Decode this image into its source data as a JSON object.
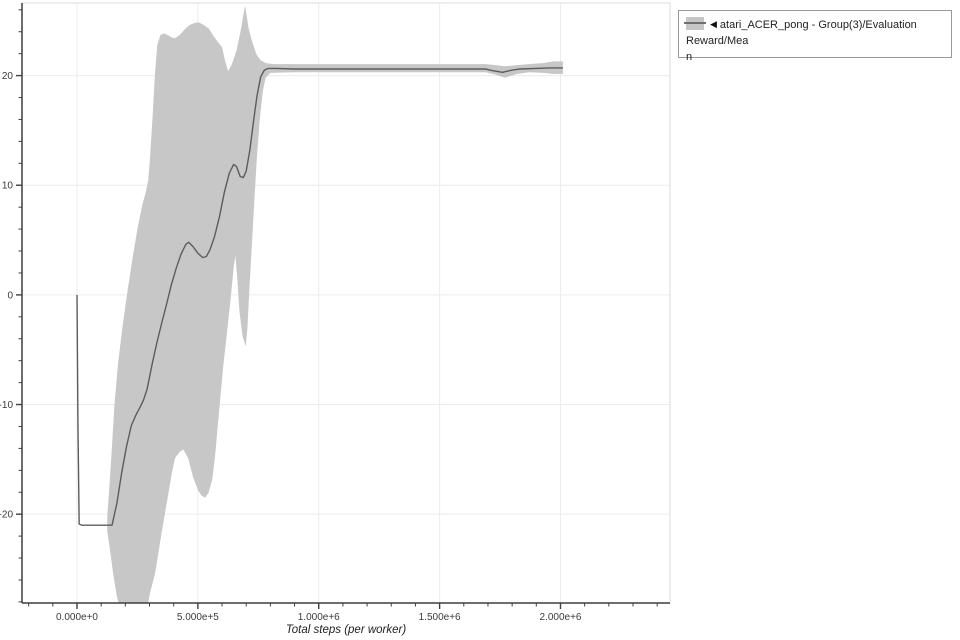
{
  "page": {
    "background": "#ffffff"
  },
  "legend": {
    "collapse_icon": "◀",
    "label_line1": "atari_ACER_pong - Group(3)/Evaluation Reward/Mea",
    "label_line2": "n",
    "swatch_color": "#c6c6c6",
    "swatch_line_color": "#6f6f6f"
  },
  "chart_data": {
    "type": "line",
    "title": "",
    "xlabel": "Total steps (per worker)",
    "ylabel": "",
    "series_name": "atari_ACER_pong - Group(3)/Evaluation Reward/Mean",
    "legend_position": "top-right-outside",
    "grid": "major",
    "xlim_e6": [
      -0.2275,
      2.453
    ],
    "ylim": [
      -28.1,
      26.62
    ],
    "x_ticks": [
      {
        "value_e6": 0.0,
        "label": "0.000e+0"
      },
      {
        "value_e6": 0.5,
        "label": "5.000e+5"
      },
      {
        "value_e6": 1.0,
        "label": "1.000e+6"
      },
      {
        "value_e6": 1.5,
        "label": "1.500e+6"
      },
      {
        "value_e6": 2.0,
        "label": "2.000e+6"
      }
    ],
    "y_ticks": [
      {
        "value": 20,
        "label": "20"
      },
      {
        "value": 10,
        "label": "10"
      },
      {
        "value": 0,
        "label": "0"
      },
      {
        "value": -10,
        "label": "-10"
      },
      {
        "value": -20,
        "label": "-20"
      }
    ],
    "x_minor_range_e6": [
      -0.2,
      2.4
    ],
    "x_minor_step_e6": 0.1,
    "y_minor_range": [
      -28,
      26
    ],
    "y_minor_step": 2,
    "colors": {
      "band": "#c7c7c7",
      "line": "#5c5c5c",
      "grid": "#ececec",
      "spine": "#3f3f3f",
      "border_light": "#dcdcdc",
      "tick_label": "#3b3b3b"
    },
    "line": {
      "x_e6": [
        0,
        0.004,
        0.009,
        0.02,
        0.06,
        0.1,
        0.145,
        0.165,
        0.185,
        0.205,
        0.225,
        0.245,
        0.262,
        0.275,
        0.29,
        0.31,
        0.33,
        0.35,
        0.37,
        0.39,
        0.41,
        0.43,
        0.45,
        0.462,
        0.48,
        0.5,
        0.52,
        0.535,
        0.55,
        0.57,
        0.59,
        0.61,
        0.63,
        0.648,
        0.66,
        0.675,
        0.688,
        0.7,
        0.715,
        0.73,
        0.745,
        0.76,
        0.775,
        0.79,
        0.82,
        0.9,
        1.0,
        1.1,
        1.2,
        1.3,
        1.4,
        1.5,
        1.6,
        1.69,
        1.72,
        1.76,
        1.8,
        1.83,
        1.9,
        1.95,
        2.01
      ],
      "y": [
        0,
        -12,
        -20.9,
        -21,
        -21,
        -21,
        -21,
        -19,
        -16.2,
        -13.8,
        -11.9,
        -10.9,
        -10.2,
        -9.6,
        -8.6,
        -6.4,
        -4.4,
        -2.6,
        -0.9,
        0.9,
        2.4,
        3.7,
        4.6,
        4.8,
        4.4,
        3.8,
        3.4,
        3.5,
        4.1,
        5.4,
        7.2,
        9.4,
        11.1,
        11.9,
        11.7,
        10.8,
        10.7,
        11.3,
        13.2,
        15.8,
        18.2,
        19.9,
        20.5,
        20.65,
        20.65,
        20.6,
        20.6,
        20.6,
        20.6,
        20.6,
        20.6,
        20.6,
        20.6,
        20.6,
        20.45,
        20.3,
        20.5,
        20.6,
        20.65,
        20.7,
        20.7
      ]
    },
    "band": {
      "upper": {
        "x_e6": [
          0.125,
          0.14,
          0.155,
          0.17,
          0.19,
          0.21,
          0.23,
          0.25,
          0.27,
          0.285,
          0.295,
          0.302,
          0.312,
          0.322,
          0.332,
          0.345,
          0.36,
          0.375,
          0.39,
          0.405,
          0.425,
          0.445,
          0.465,
          0.485,
          0.505,
          0.525,
          0.545,
          0.565,
          0.585,
          0.6,
          0.612,
          0.625,
          0.64,
          0.66,
          0.678,
          0.695,
          0.71,
          0.723,
          0.743,
          0.76,
          0.78,
          0.81,
          0.9,
          1.1,
          1.3,
          1.5,
          1.69,
          1.73,
          1.77,
          1.82,
          1.87,
          1.93,
          1.97,
          2.01
        ],
        "y": [
          -20.3,
          -15.5,
          -10.0,
          -6.2,
          -2.6,
          0.5,
          3.4,
          6.0,
          8.2,
          9.4,
          10.5,
          12.5,
          16.0,
          20.0,
          22.8,
          23.7,
          23.85,
          23.7,
          23.5,
          23.4,
          23.7,
          24.2,
          24.6,
          24.8,
          24.85,
          24.6,
          24.3,
          23.6,
          23.0,
          22.6,
          21.4,
          20.4,
          21.0,
          22.3,
          24.2,
          26.4,
          24.3,
          23.2,
          21.9,
          21.4,
          21.15,
          21.05,
          21.05,
          21.05,
          21.05,
          21.05,
          21.05,
          20.95,
          20.85,
          20.95,
          21.05,
          21.15,
          21.3,
          21.3
        ]
      },
      "lower": {
        "x_e6": [
          0.125,
          0.135,
          0.15,
          0.165,
          0.18,
          0.2,
          0.25,
          0.29,
          0.302,
          0.323,
          0.337,
          0.35,
          0.364,
          0.378,
          0.392,
          0.405,
          0.426,
          0.44,
          0.46,
          0.48,
          0.5,
          0.515,
          0.53,
          0.545,
          0.56,
          0.572,
          0.582,
          0.592,
          0.605,
          0.62,
          0.635,
          0.648,
          0.655,
          0.663,
          0.672,
          0.685,
          0.698,
          0.705,
          0.713,
          0.722,
          0.732,
          0.744,
          0.756,
          0.768,
          0.78,
          0.8,
          0.9,
          1.1,
          1.3,
          1.5,
          1.69,
          1.73,
          1.77,
          1.82,
          1.87,
          1.93,
          1.97,
          2.01
        ],
        "y": [
          -21.5,
          -23.0,
          -25.5,
          -27.5,
          -29.0,
          -29.5,
          -29.5,
          -28.6,
          -27.2,
          -25.4,
          -23.5,
          -21.7,
          -19.9,
          -18.1,
          -16.3,
          -14.9,
          -14.3,
          -14.1,
          -14.9,
          -16.6,
          -17.8,
          -18.3,
          -18.5,
          -18.0,
          -16.8,
          -14.5,
          -12.0,
          -9.6,
          -6.5,
          -3.5,
          -0.5,
          2.5,
          3.6,
          1.5,
          -1.5,
          -3.8,
          -4.7,
          -3.0,
          0.5,
          4.0,
          8.0,
          12.5,
          16.0,
          18.5,
          19.8,
          20.25,
          20.3,
          20.3,
          20.3,
          20.3,
          20.3,
          20.1,
          19.8,
          20.15,
          20.3,
          20.25,
          20.15,
          20.15
        ]
      }
    }
  }
}
